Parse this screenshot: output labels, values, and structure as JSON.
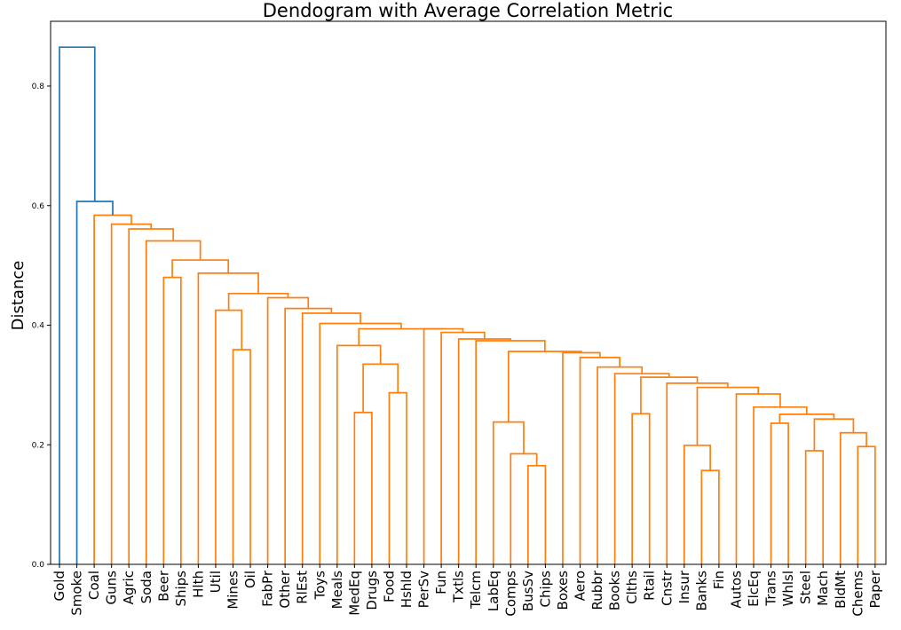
{
  "chart_data": {
    "type": "dendrogram",
    "title": "Dendogram with Average Correlation Metric",
    "ylabel": "Distance",
    "xlabel": "",
    "ylim": [
      0,
      0.88
    ],
    "yticks": [
      "0.0",
      "0.2",
      "0.4",
      "0.6",
      "0.8"
    ],
    "ytick_values": [
      0.0,
      0.2,
      0.4,
      0.6,
      0.8
    ],
    "leaves": [
      "Gold",
      "Smoke",
      "Coal",
      "Guns",
      "Agric",
      "Soda",
      "Beer",
      "Ships",
      "Hlth",
      "Util",
      "Mines",
      "Oil",
      "FabPr",
      "Other",
      "RlEst",
      "Toys",
      "Meals",
      "MedEq",
      "Drugs",
      "Food",
      "Hshld",
      "PerSv",
      "Fun",
      "Txtls",
      "Telcm",
      "LabEq",
      "Comps",
      "BusSv",
      "Chips",
      "Boxes",
      "Aero",
      "Rubbr",
      "Books",
      "Clths",
      "Rtail",
      "Cnstr",
      "Insur",
      "Banks",
      "Fin",
      "Autos",
      "ElcEq",
      "Trans",
      "Whlsl",
      "Steel",
      "Mach",
      "BldMt",
      "Chems",
      "Paper"
    ],
    "colors": {
      "blue": "#1f77b4",
      "orange": "#ff7f0e"
    },
    "merges": [
      {
        "id": "Ab",
        "l": "Chips",
        "r": "BusSv",
        "h": 0.165,
        "c": "orange"
      },
      {
        "id": "Fb",
        "l": "Banks",
        "r": "Fin",
        "h": 0.157,
        "c": "orange"
      },
      {
        "id": "Gb",
        "l": "Steel",
        "r": "Mach",
        "h": 0.19,
        "c": "orange"
      },
      {
        "id": "Gc",
        "l": "Chems",
        "r": "Paper",
        "h": 0.197,
        "c": "orange"
      },
      {
        "id": "Fa",
        "l": "Insur",
        "r": "Fb",
        "h": 0.199,
        "c": "orange"
      },
      {
        "id": "Ac",
        "l": "Comps",
        "r": "Ab",
        "h": 0.185,
        "c": "orange"
      },
      {
        "id": "Gd",
        "l": "BldMt",
        "r": "Gc",
        "h": 0.22,
        "c": "orange"
      },
      {
        "id": "Gf",
        "l": "Trans",
        "r": "Whlsl",
        "h": 0.236,
        "c": "orange"
      },
      {
        "id": "Ad",
        "l": "LabEq",
        "r": "Ac",
        "h": 0.238,
        "c": "orange"
      },
      {
        "id": "Ge",
        "l": "Gb",
        "r": "Gd",
        "h": 0.243,
        "c": "orange"
      },
      {
        "id": "Ca",
        "l": "Clths",
        "r": "Rtail",
        "h": 0.252,
        "c": "orange"
      },
      {
        "id": "Gg",
        "l": "Gf",
        "r": "Ge",
        "h": 0.251,
        "c": "orange"
      },
      {
        "id": "Da",
        "l": "MedEq",
        "r": "Drugs",
        "h": 0.254,
        "c": "orange"
      },
      {
        "id": "Gh",
        "l": "ElcEq",
        "r": "Gg",
        "h": 0.263,
        "c": "orange"
      },
      {
        "id": "Gi",
        "l": "Autos",
        "r": "Gh",
        "h": 0.285,
        "c": "orange"
      },
      {
        "id": "Db",
        "l": "Food",
        "r": "Hshld",
        "h": 0.287,
        "c": "orange"
      },
      {
        "id": "Fc",
        "l": "Fa",
        "r": "Gi",
        "h": 0.296,
        "c": "orange"
      },
      {
        "id": "Fd",
        "l": "Cnstr",
        "r": "Fc",
        "h": 0.303,
        "c": "orange"
      },
      {
        "id": "Cb",
        "l": "Ca",
        "r": "Fd",
        "h": 0.313,
        "c": "orange"
      },
      {
        "id": "Cc",
        "l": "Books",
        "r": "Cb",
        "h": 0.319,
        "c": "orange"
      },
      {
        "id": "Cd",
        "l": "Rubbr",
        "r": "Cc",
        "h": 0.33,
        "c": "orange"
      },
      {
        "id": "Dc",
        "l": "Da",
        "r": "Db",
        "h": 0.335,
        "c": "orange"
      },
      {
        "id": "Ce",
        "l": "Aero",
        "r": "Cd",
        "h": 0.346,
        "c": "orange"
      },
      {
        "id": "Cf",
        "l": "Boxes",
        "r": "Ce",
        "h": 0.354,
        "c": "orange"
      },
      {
        "id": "Ae",
        "l": "Ad",
        "r": "Cf",
        "h": 0.356,
        "c": "orange"
      },
      {
        "id": "Ba",
        "l": "Mines",
        "r": "Oil",
        "h": 0.359,
        "c": "orange"
      },
      {
        "id": "Dd",
        "l": "Meals",
        "r": "Dc",
        "h": 0.366,
        "c": "orange"
      },
      {
        "id": "Af",
        "l": "Telcm",
        "r": "Ae",
        "h": 0.374,
        "c": "orange"
      },
      {
        "id": "Ag",
        "l": "Txtls",
        "r": "Af",
        "h": 0.377,
        "c": "orange"
      },
      {
        "id": "Ah",
        "l": "Fun",
        "r": "Ag",
        "h": 0.388,
        "c": "orange"
      },
      {
        "id": "Ai",
        "l": "PerSv",
        "r": "Ah",
        "h": 0.394,
        "c": "orange"
      },
      {
        "id": "De",
        "l": "Dd",
        "r": "Ai",
        "h": 0.394,
        "c": "orange"
      },
      {
        "id": "Df",
        "l": "Toys",
        "r": "De",
        "h": 0.403,
        "c": "orange"
      },
      {
        "id": "Dg",
        "l": "RlEst",
        "r": "Df",
        "h": 0.42,
        "c": "orange"
      },
      {
        "id": "Bb",
        "l": "Util",
        "r": "Ba",
        "h": 0.425,
        "c": "orange"
      },
      {
        "id": "Dh",
        "l": "Other",
        "r": "Dg",
        "h": 0.428,
        "c": "orange"
      },
      {
        "id": "Di",
        "l": "FabPr",
        "r": "Dh",
        "h": 0.446,
        "c": "orange"
      },
      {
        "id": "Bc",
        "l": "Bb",
        "r": "Di",
        "h": 0.453,
        "c": "orange"
      },
      {
        "id": "Ea",
        "l": "Beer",
        "r": "Ships",
        "h": 0.48,
        "c": "orange"
      },
      {
        "id": "Bd",
        "l": "Hlth",
        "r": "Bc",
        "h": 0.487,
        "c": "orange"
      },
      {
        "id": "Be",
        "l": "Ea",
        "r": "Bd",
        "h": 0.509,
        "c": "orange"
      },
      {
        "id": "Eb",
        "l": "Soda",
        "r": "Be",
        "h": 0.541,
        "c": "orange"
      },
      {
        "id": "Ec",
        "l": "Agric",
        "r": "Eb",
        "h": 0.561,
        "c": "orange"
      },
      {
        "id": "Ed",
        "l": "Guns",
        "r": "Ec",
        "h": 0.569,
        "c": "orange"
      },
      {
        "id": "Ee",
        "l": "Coal",
        "r": "Ed",
        "h": 0.584,
        "c": "orange"
      },
      {
        "id": "Ha",
        "l": "Smoke",
        "r": "Ee",
        "h": 0.607,
        "c": "blue"
      },
      {
        "id": "Hb",
        "l": "Gold",
        "r": "Ha",
        "h": 0.865,
        "c": "blue"
      }
    ]
  }
}
